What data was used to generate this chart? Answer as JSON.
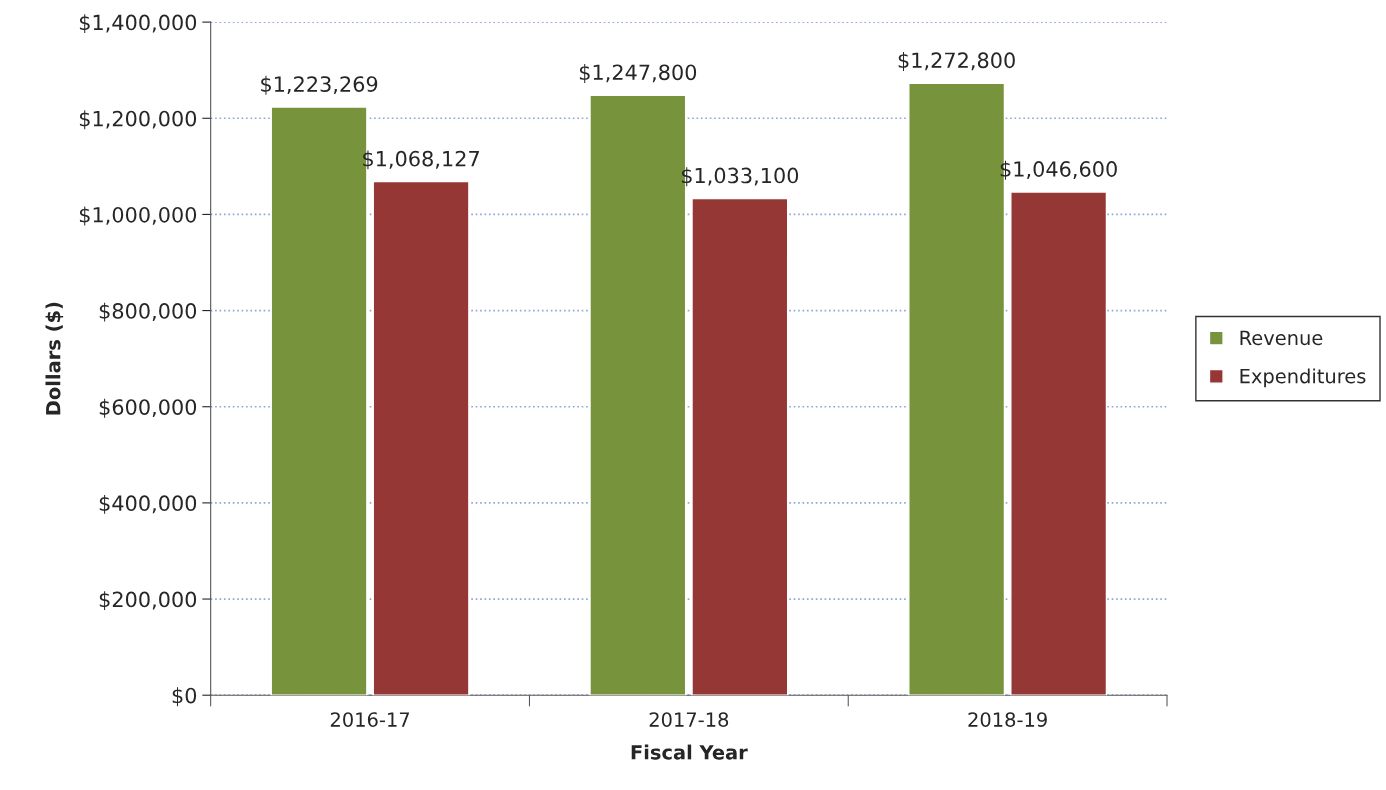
{
  "chart_data": {
    "type": "bar",
    "xlabel": "Fiscal Year",
    "ylabel": "Dollars ($)",
    "categories": [
      "2016-17",
      "2017-18",
      "2018-19"
    ],
    "series": [
      {
        "name": "Revenue",
        "color": "#77933c",
        "values": [
          1223269,
          1247800,
          1272800
        ],
        "value_labels": [
          "$1,223,269",
          "$1,247,800",
          "$1,272,800"
        ]
      },
      {
        "name": "Expenditures",
        "color": "#953735",
        "values": [
          1068127,
          1033100,
          1046600
        ],
        "value_labels": [
          "$1,068,127",
          "$1,033,100",
          "$1,046,600"
        ]
      }
    ],
    "ylim": [
      0,
      1400000
    ],
    "yticks": [
      {
        "value": 0,
        "label": "$0"
      },
      {
        "value": 200000,
        "label": "$200,000"
      },
      {
        "value": 400000,
        "label": "$400,000"
      },
      {
        "value": 600000,
        "label": "$600,000"
      },
      {
        "value": 800000,
        "label": "$800,000"
      },
      {
        "value": 1000000,
        "label": "$1,000,000"
      },
      {
        "value": 1200000,
        "label": "$1,200,000"
      },
      {
        "value": 1400000,
        "label": "$1,400,000"
      }
    ],
    "grid": "y",
    "legend": "right"
  }
}
